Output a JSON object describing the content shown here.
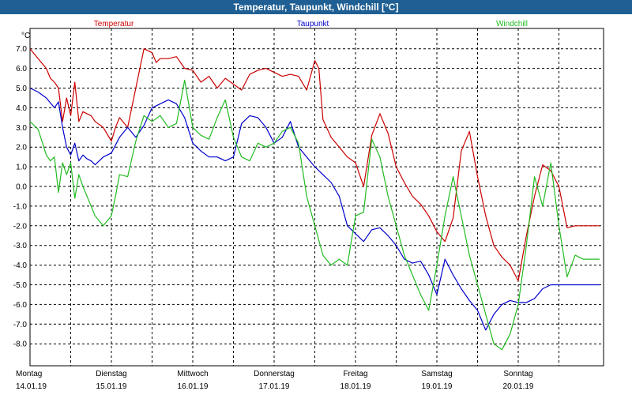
{
  "title": "Temperatur, Taupunkt, Windchill [°C]",
  "chart_data": {
    "type": "line",
    "yunit": "°C",
    "ylim": [
      -9,
      7.4
    ],
    "yticks": [
      "7.0",
      "6.0",
      "5.0",
      "4.0",
      "3.0",
      "2.0",
      "1.0",
      "0.0",
      "-1.0",
      "-2.0",
      "-3.0",
      "-4.0",
      "-5.0",
      "-6.0",
      "-7.0",
      "-8.0"
    ],
    "grid": true,
    "days": [
      {
        "weekday": "Montag",
        "date": "14.01.19"
      },
      {
        "weekday": "Dienstag",
        "date": "15.01.19"
      },
      {
        "weekday": "Mittwoch",
        "date": "16.01.19"
      },
      {
        "weekday": "Donnerstag",
        "date": "17.01.19"
      },
      {
        "weekday": "Freitag",
        "date": "18.01.19"
      },
      {
        "weekday": "Samstag",
        "date": "19.01.19"
      },
      {
        "weekday": "Sonntag",
        "date": "20.01.19"
      }
    ],
    "series": [
      {
        "name": "Temperatur",
        "color": "#cc0000",
        "x": [
          0,
          0.1,
          0.2,
          0.25,
          0.3,
          0.35,
          0.4,
          0.45,
          0.5,
          0.55,
          0.6,
          0.65,
          0.7,
          0.75,
          0.8,
          0.9,
          1.0,
          1.05,
          1.1,
          1.2,
          1.3,
          1.4,
          1.5,
          1.55,
          1.6,
          1.7,
          1.8,
          1.9,
          2.0,
          2.1,
          2.2,
          2.3,
          2.4,
          2.5,
          2.6,
          2.7,
          2.8,
          2.9,
          3.0,
          3.1,
          3.2,
          3.3,
          3.4,
          3.5,
          3.55,
          3.6,
          3.7,
          3.8,
          3.9,
          4.0,
          4.1,
          4.2,
          4.3,
          4.4,
          4.5,
          4.6,
          4.7,
          4.8,
          4.9,
          5.0,
          5.1,
          5.2,
          5.3,
          5.4,
          5.5,
          5.6,
          5.7,
          5.8,
          5.9,
          6.0,
          6.1,
          6.2,
          6.3,
          6.4,
          6.5,
          6.6,
          6.7,
          6.8,
          6.9,
          7.0
        ],
        "y": [
          7.0,
          6.5,
          6.0,
          5.5,
          5.3,
          5.0,
          3.3,
          4.5,
          3.6,
          5.3,
          3.3,
          3.8,
          3.7,
          3.6,
          3.3,
          3.0,
          2.3,
          3.0,
          3.5,
          3.0,
          5.0,
          7.0,
          6.8,
          6.3,
          6.5,
          6.5,
          6.6,
          6.0,
          5.9,
          5.3,
          5.6,
          5.0,
          5.5,
          5.2,
          4.9,
          5.7,
          5.9,
          6.0,
          5.8,
          5.6,
          5.7,
          5.6,
          4.9,
          6.4,
          6.0,
          3.4,
          2.5,
          2.0,
          1.5,
          1.2,
          0.0,
          2.6,
          3.7,
          2.7,
          1.0,
          0.2,
          -0.5,
          -0.9,
          -1.5,
          -2.3,
          -2.8,
          -1.6,
          1.8,
          2.8,
          0.5,
          -1.5,
          -3.0,
          -3.6,
          -4.0,
          -4.8,
          -2.5,
          -0.5,
          1.1,
          0.8,
          0.0,
          -2.1,
          -2.0,
          -2.0,
          -2.0,
          -2.0
        ]
      },
      {
        "name": "Taupunkt",
        "color": "#0000cc",
        "x": [
          0,
          0.1,
          0.2,
          0.3,
          0.35,
          0.4,
          0.45,
          0.5,
          0.55,
          0.6,
          0.65,
          0.7,
          0.75,
          0.8,
          0.9,
          1.0,
          1.1,
          1.2,
          1.3,
          1.4,
          1.5,
          1.6,
          1.7,
          1.8,
          1.9,
          2.0,
          2.1,
          2.2,
          2.3,
          2.4,
          2.5,
          2.6,
          2.7,
          2.8,
          2.9,
          3.0,
          3.1,
          3.2,
          3.3,
          3.4,
          3.5,
          3.6,
          3.7,
          3.8,
          3.9,
          4.0,
          4.1,
          4.2,
          4.3,
          4.4,
          4.5,
          4.6,
          4.7,
          4.8,
          4.9,
          5.0,
          5.1,
          5.2,
          5.3,
          5.4,
          5.5,
          5.6,
          5.7,
          5.8,
          5.9,
          6.0,
          6.1,
          6.2,
          6.3,
          6.4,
          6.5,
          6.6,
          6.7,
          6.8,
          6.9,
          7.0
        ],
        "y": [
          5.0,
          4.8,
          4.5,
          4.0,
          4.3,
          3.0,
          2.0,
          1.6,
          2.2,
          1.3,
          1.6,
          1.4,
          1.3,
          1.1,
          1.5,
          1.7,
          2.5,
          3.0,
          2.5,
          3.1,
          4.0,
          4.2,
          4.4,
          4.2,
          3.5,
          2.2,
          1.8,
          1.5,
          1.5,
          1.3,
          1.5,
          3.2,
          3.6,
          3.5,
          3.0,
          2.2,
          2.5,
          3.3,
          2.0,
          1.5,
          1.0,
          0.6,
          0.2,
          -0.5,
          -2.0,
          -2.4,
          -2.8,
          -2.2,
          -2.1,
          -2.5,
          -3.0,
          -3.7,
          -3.9,
          -3.8,
          -4.5,
          -5.5,
          -3.7,
          -4.5,
          -5.2,
          -5.8,
          -6.3,
          -7.3,
          -6.5,
          -6.0,
          -5.8,
          -5.9,
          -5.9,
          -5.7,
          -5.2,
          -5.0,
          -5.0,
          -5.0,
          -5.0,
          -5.0,
          -5.0,
          -5.0
        ]
      },
      {
        "name": "Windchill",
        "color": "#22bb22",
        "x": [
          0,
          0.1,
          0.2,
          0.25,
          0.3,
          0.35,
          0.4,
          0.45,
          0.5,
          0.55,
          0.6,
          0.65,
          0.7,
          0.75,
          0.8,
          0.9,
          1.0,
          1.05,
          1.1,
          1.2,
          1.3,
          1.4,
          1.5,
          1.6,
          1.7,
          1.8,
          1.9,
          2.0,
          2.1,
          2.2,
          2.3,
          2.4,
          2.5,
          2.6,
          2.7,
          2.8,
          2.9,
          3.0,
          3.1,
          3.2,
          3.3,
          3.4,
          3.5,
          3.6,
          3.7,
          3.8,
          3.9,
          4.0,
          4.1,
          4.2,
          4.3,
          4.4,
          4.5,
          4.6,
          4.7,
          4.8,
          4.9,
          5.0,
          5.1,
          5.2,
          5.3,
          5.4,
          5.5,
          5.6,
          5.7,
          5.8,
          5.9,
          6.0,
          6.1,
          6.2,
          6.3,
          6.4,
          6.5,
          6.6,
          6.7,
          6.8,
          6.9,
          7.0
        ],
        "y": [
          3.3,
          2.9,
          1.6,
          1.3,
          1.5,
          -0.3,
          1.2,
          0.6,
          1.2,
          -0.6,
          0.6,
          0.0,
          -0.5,
          -1.0,
          -1.5,
          -2.0,
          -1.5,
          -0.5,
          0.6,
          0.5,
          2.3,
          3.6,
          3.3,
          3.6,
          3.0,
          3.2,
          5.4,
          3.0,
          2.6,
          2.4,
          3.5,
          4.4,
          2.5,
          1.5,
          1.3,
          2.2,
          2.0,
          2.2,
          2.8,
          3.0,
          2.2,
          -0.5,
          -2.0,
          -3.5,
          -4.0,
          -3.7,
          -4.0,
          -1.5,
          -1.3,
          2.4,
          1.5,
          -0.5,
          -2.0,
          -3.5,
          -4.5,
          -5.5,
          -6.3,
          -4.0,
          -1.5,
          0.5,
          -1.5,
          -3.5,
          -5.0,
          -6.5,
          -8.0,
          -8.3,
          -7.5,
          -6.0,
          -3.0,
          0.5,
          -1.0,
          1.2,
          -2.0,
          -4.6,
          -3.5,
          -3.7,
          -3.7,
          -3.7
        ]
      }
    ]
  }
}
